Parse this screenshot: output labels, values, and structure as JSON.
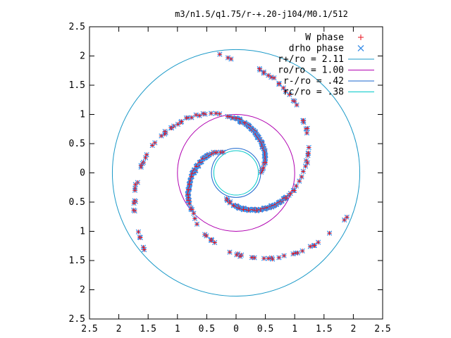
{
  "chart_data": {
    "type": "scatter",
    "title": "m3/n1.5/q1.75/r-+.20-j104/M0.1/512",
    "xlabel": "",
    "ylabel": "",
    "xlim": [
      -2.5,
      2.5
    ],
    "ylim": [
      -2.5,
      2.5
    ],
    "xticks": [
      -2.5,
      -2,
      -1.5,
      -1,
      -0.5,
      0,
      0.5,
      1,
      1.5,
      2,
      2.5
    ],
    "yticks": [
      -2.5,
      -2,
      -1.5,
      -1,
      -0.5,
      0,
      0.5,
      1,
      1.5,
      2,
      2.5
    ],
    "xtick_labels": [
      "2.5",
      "2",
      "1.5",
      "1",
      "0.5",
      "0",
      "0.5",
      "1",
      "1.5",
      "2",
      "2.5"
    ],
    "ytick_labels": [
      "2.5",
      "2",
      "1.5",
      "1",
      "0.5",
      "0",
      "0.5",
      "1",
      "1.5",
      "2",
      "2.5"
    ],
    "grid": false,
    "legend_position": "top-right",
    "m": 3,
    "series": [
      {
        "name": "W phase",
        "style": "points",
        "marker": "plus",
        "color": "#e8101c"
      },
      {
        "name": "drho phase",
        "style": "points",
        "marker": "cross",
        "color": "#3a8ee8"
      }
    ],
    "circles": [
      {
        "name": "r+/ro = 2.11",
        "radius": 2.11,
        "color": "#1a99c8"
      },
      {
        "name": "ro/ro = 1.00",
        "radius": 1.0,
        "color": "#b000b0"
      },
      {
        "name": "r-/ro = .42",
        "radius": 0.42,
        "color": "#1a66ce"
      },
      {
        "name": "rc/ro = .38",
        "radius": 0.38,
        "color": "#00c8c8"
      }
    ],
    "spiral_arms": [
      {
        "r": [
          0.42,
          0.7,
          1.0,
          1.3,
          1.6,
          1.9,
          2.05
        ],
        "phi_deg": [
          0,
          56,
          101,
          139,
          174,
          206,
          220
        ]
      }
    ],
    "dense_region_r": [
      0.55,
      0.95
    ]
  }
}
